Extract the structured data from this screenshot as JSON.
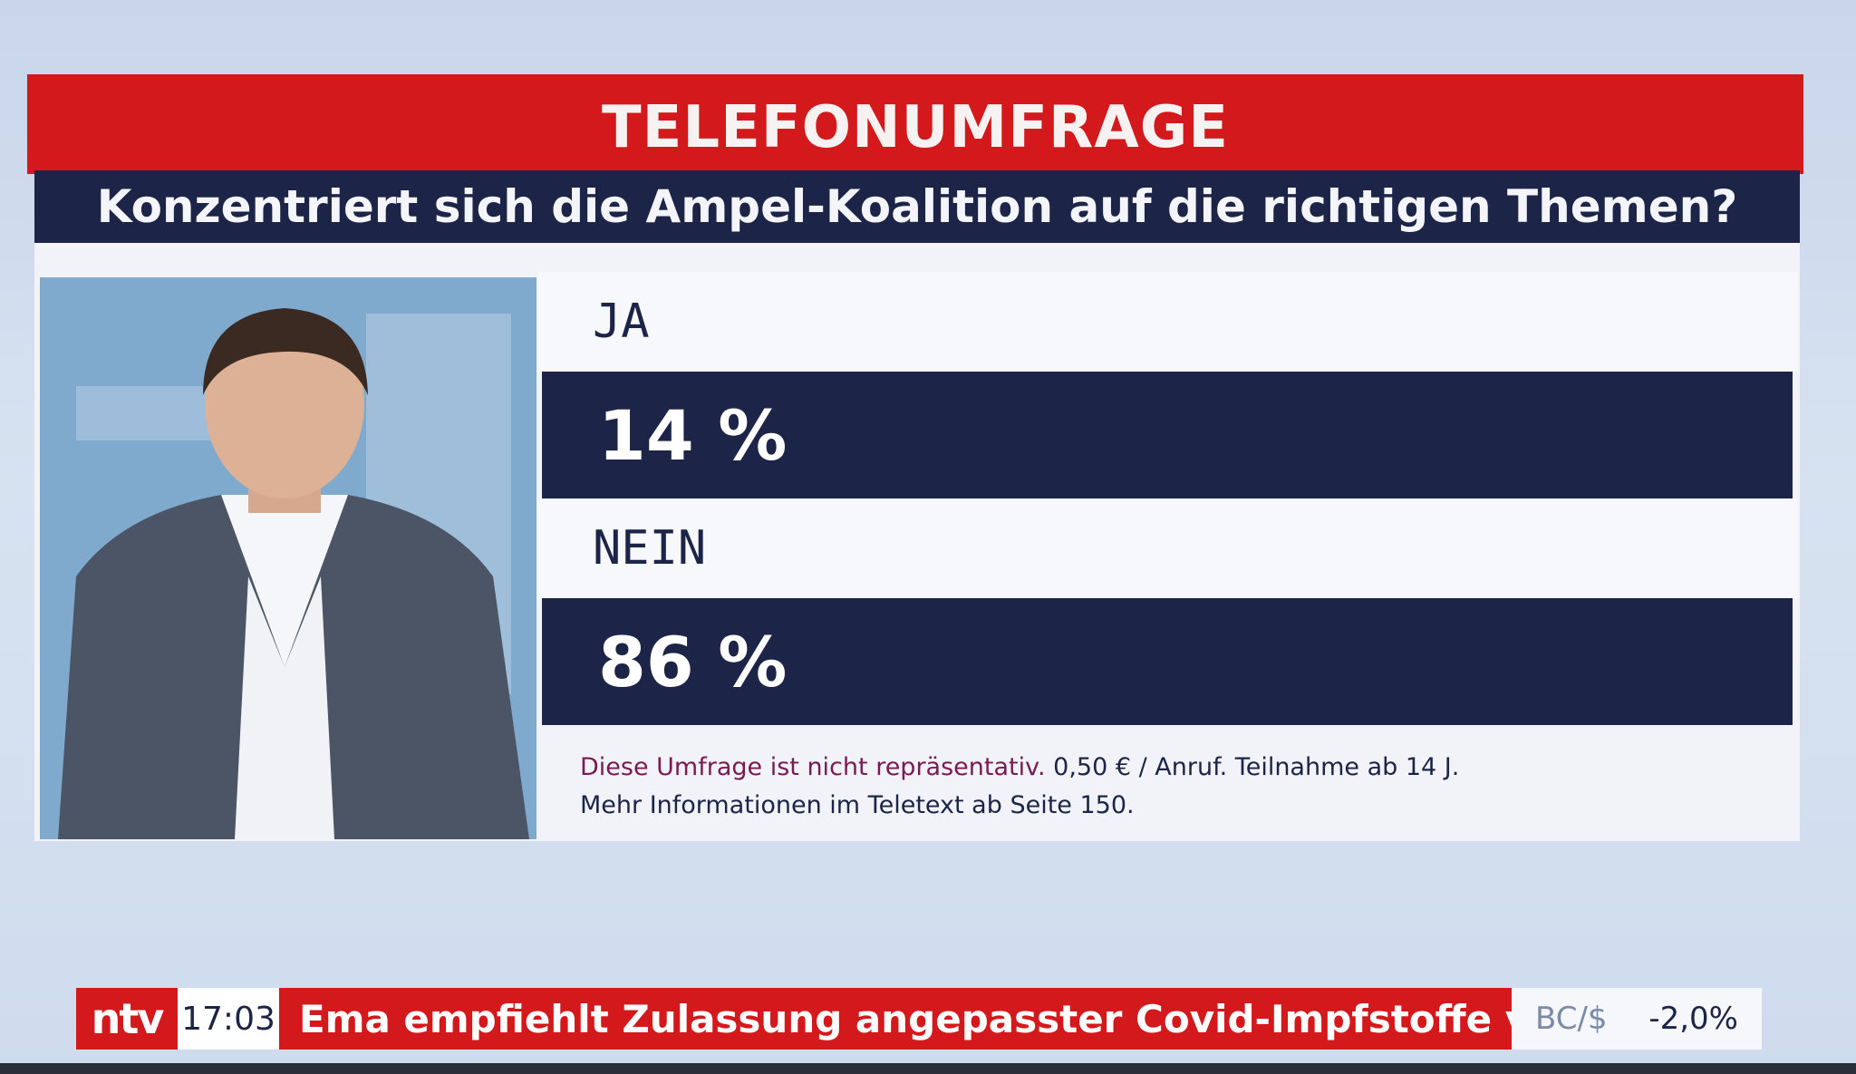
{
  "poll": {
    "title": "TELEFONUMFRAGE",
    "question": "Konzentriert sich die Ampel-Koalition auf die richtigen Themen?",
    "options": [
      {
        "label": "JA",
        "value_text": "14 %",
        "share": 0.14
      },
      {
        "label": "NEIN",
        "value_text": "86 %",
        "share": 0.86
      }
    ],
    "disclaimer": {
      "highlight": "Diese Umfrage ist nicht repräsentativ.",
      "rest": " 0,50 € / Anruf. Teilnahme ab 14 J.",
      "line2": "Mehr Informationen im Teletext ab Seite 150."
    }
  },
  "ticker": {
    "logo": "ntv",
    "time": "17:03",
    "headline": "Ema empfiehlt Zulassung angepasster Covid-Impfstoffe von Biontech",
    "market_symbol": "BC/$",
    "market_change": "-2,0%"
  },
  "colors": {
    "brand_red": "#d3191c",
    "navy": "#1c2547",
    "panel": "#f1f3f8"
  }
}
